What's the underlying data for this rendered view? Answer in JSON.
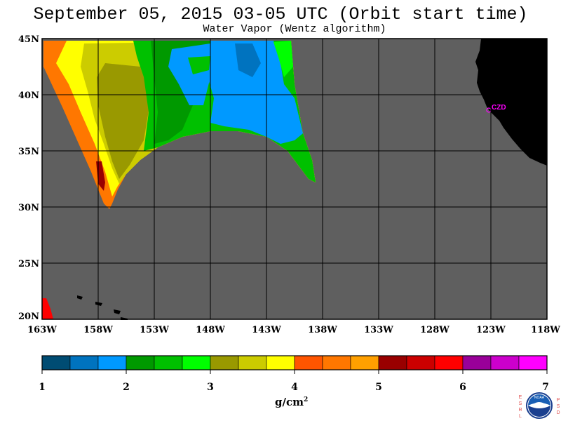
{
  "title": "September 05, 2015  03-05 UTC  (Orbit start time)",
  "subtitle": "Water Vapor (Wentz algorithm)",
  "map": {
    "lat_labels": [
      "45N",
      "40N",
      "35N",
      "30N",
      "25N",
      "20N"
    ],
    "lon_labels": [
      "163W",
      "158W",
      "153W",
      "148W",
      "143W",
      "138W",
      "133W",
      "128W",
      "123W",
      "118W"
    ],
    "lat_range": [
      20,
      45
    ],
    "lon_range": [
      -163,
      -118
    ],
    "station_label": "CZD",
    "colors": {
      "ocean_nodata": "#5f5f5f",
      "land": "#000000",
      "station": "#ff00ff"
    }
  },
  "colorbar": {
    "tick_labels": [
      "1",
      "2",
      "3",
      "4",
      "5",
      "6",
      "7"
    ],
    "range": [
      1,
      7
    ],
    "unit": "g/cm",
    "unit_exponent": "2",
    "colors": [
      "#004c73",
      "#0073bf",
      "#0099ff",
      "#009900",
      "#00c000",
      "#00ff00",
      "#999900",
      "#cccc00",
      "#ffff00",
      "#ff5500",
      "#ff7700",
      "#ffa000",
      "#990000",
      "#cc0000",
      "#ff0000",
      "#990099",
      "#cc00cc",
      "#ff00ff"
    ]
  },
  "logo": {
    "left_letters": [
      "E",
      "S",
      "R",
      "L"
    ],
    "right_letters": [
      "P",
      "S",
      "D"
    ],
    "badge_text": "NOAA"
  }
}
